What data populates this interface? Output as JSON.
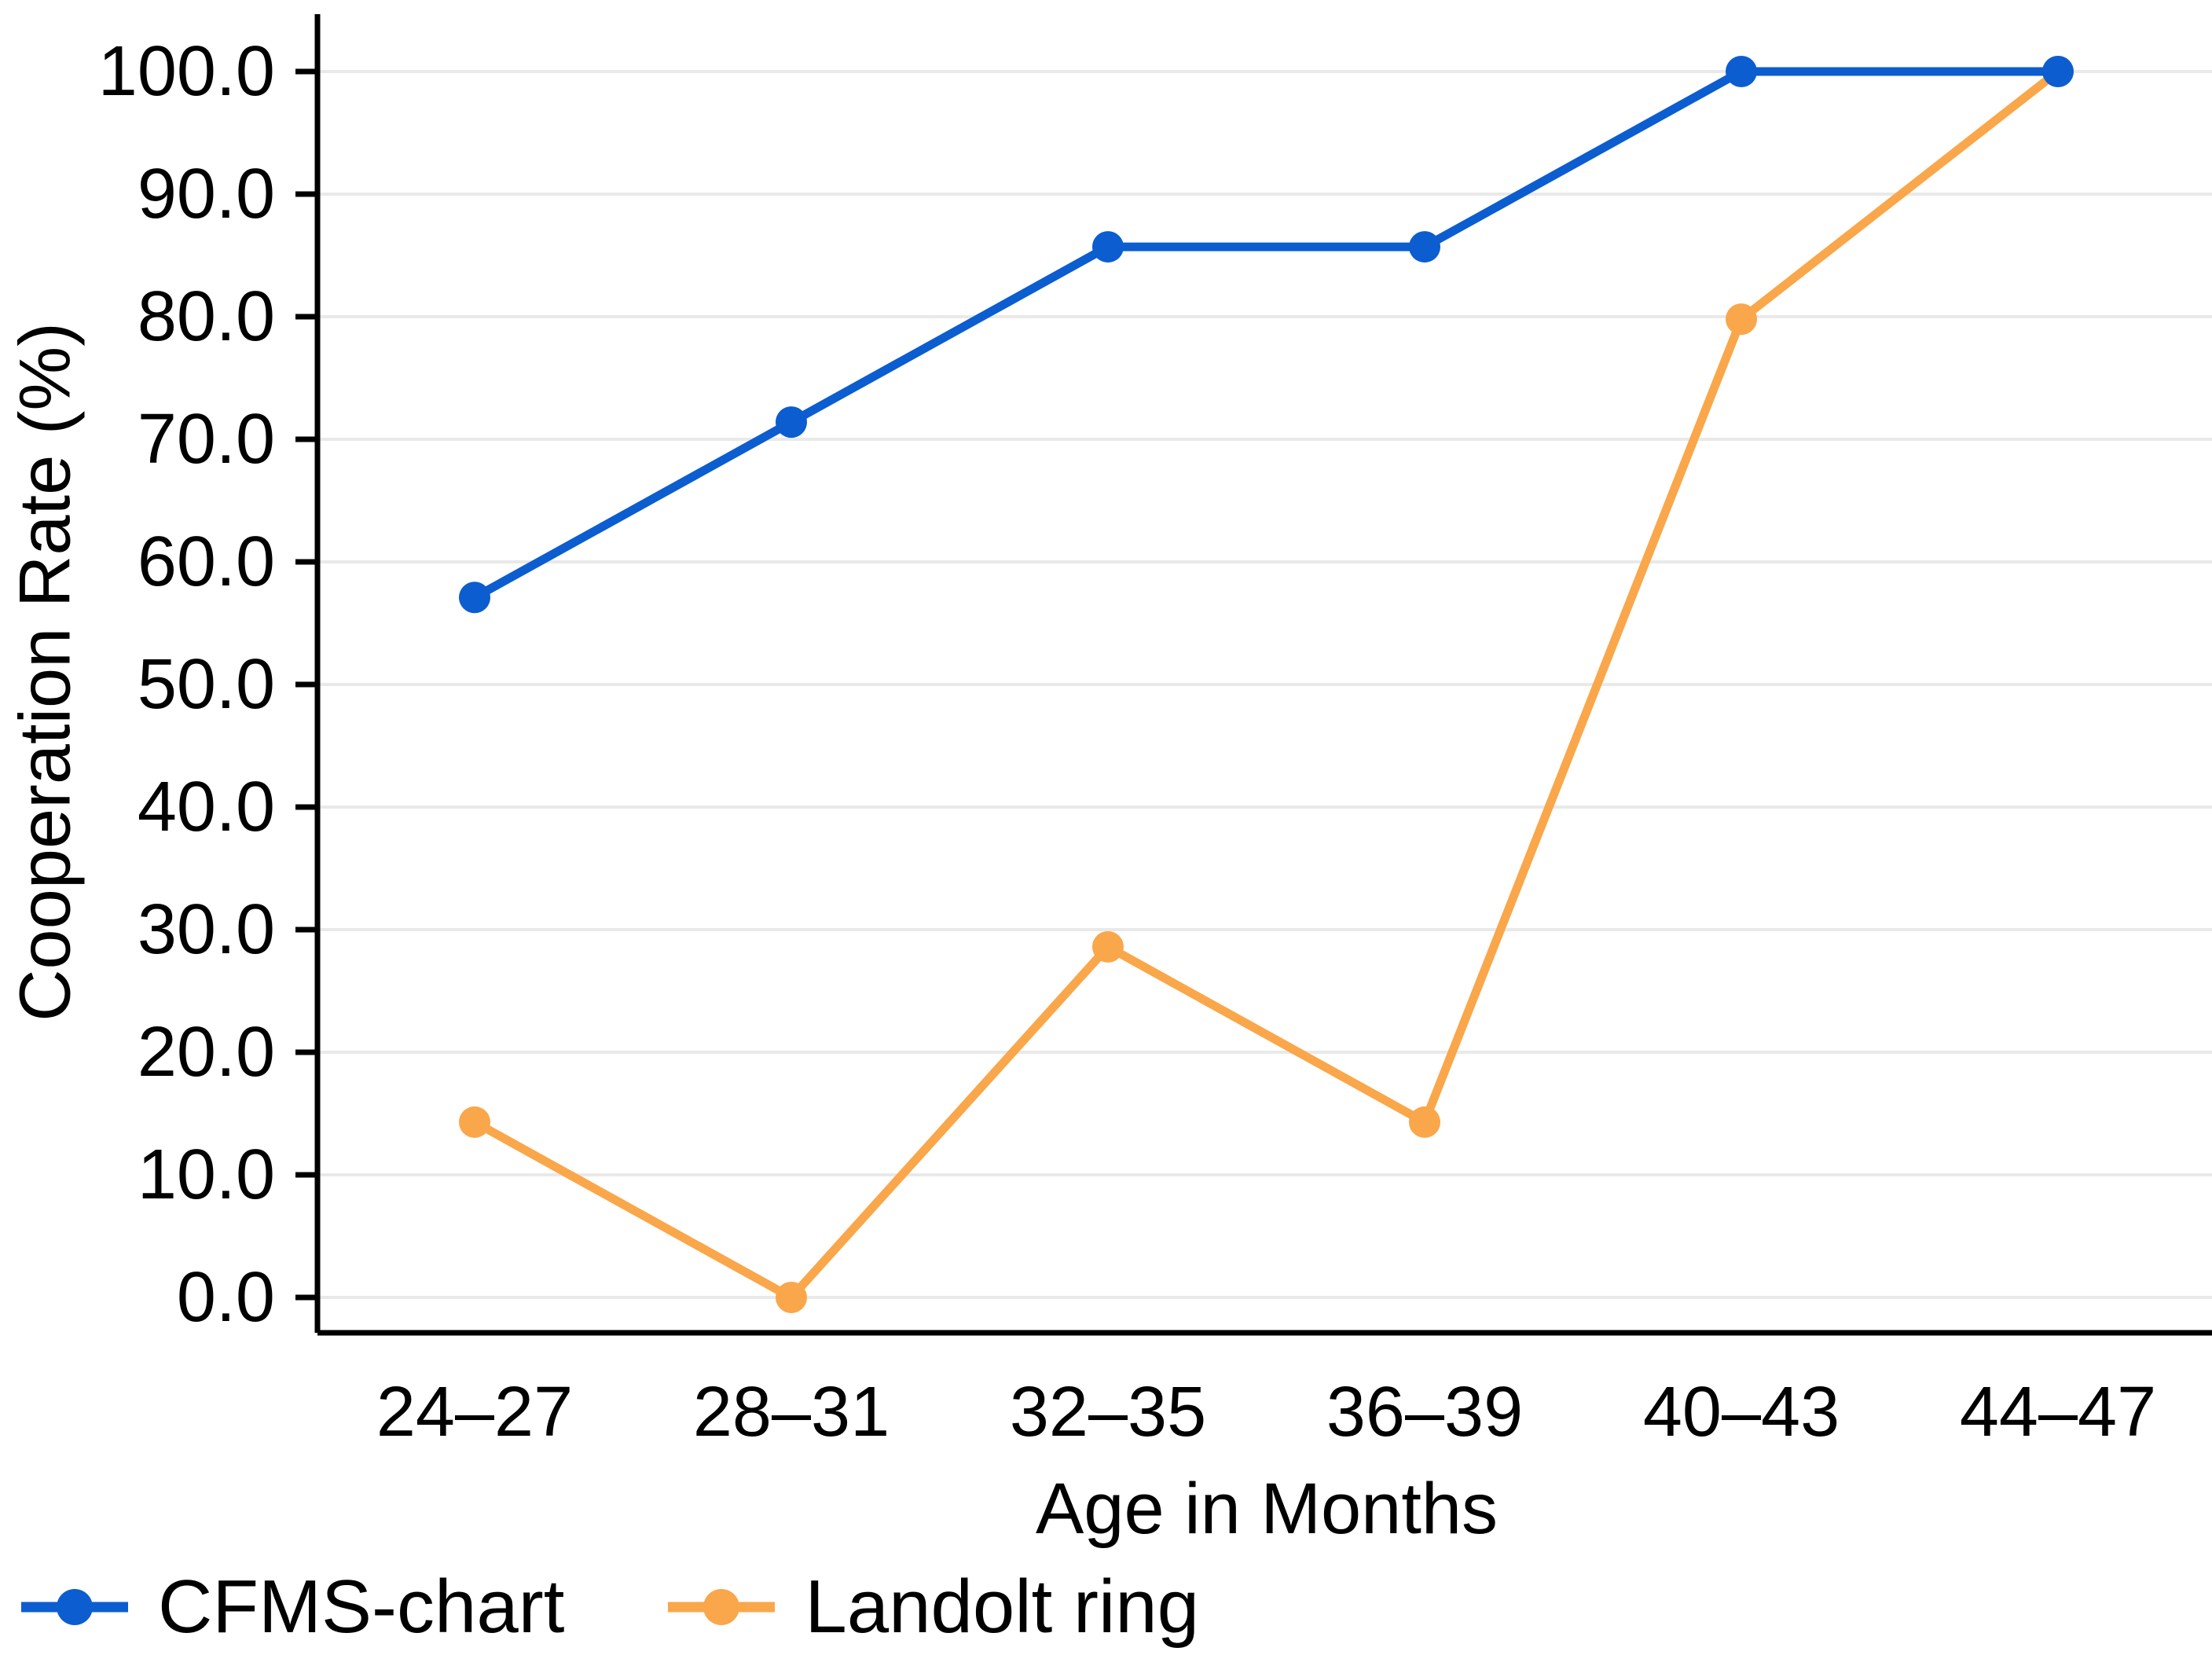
{
  "chart_data": {
    "type": "line",
    "title": "",
    "xlabel": "Age in Months",
    "ylabel": "Cooperation Rate (%)",
    "categories": [
      "24–27",
      "28–31",
      "32–35",
      "36–39",
      "40–43",
      "44–47"
    ],
    "series": [
      {
        "name": "CFMS-chart",
        "color": "#0B5DD0",
        "marker": "circle",
        "values": [
          57.1,
          71.4,
          85.7,
          85.7,
          100.0,
          100.0
        ]
      },
      {
        "name": "Landolt ring",
        "color": "#F9A74A",
        "marker": "circle",
        "values": [
          14.3,
          0.0,
          28.6,
          14.3,
          79.8,
          100.0
        ]
      }
    ],
    "ylim": [
      0,
      100
    ],
    "y_ticks": {
      "values": [
        0,
        10,
        20,
        30,
        40,
        50,
        60,
        70,
        80,
        90,
        100
      ],
      "labels": [
        "0.0",
        "10.0",
        "20.0",
        "30.0",
        "40.0",
        "50.0",
        "60.0",
        "70.0",
        "80.0",
        "90.0",
        "100.0"
      ]
    },
    "grid": "horizontal gridlines only",
    "gridline_color": "#E9E9E9",
    "axis_color": "#000000",
    "background_color": "#FFFFFF",
    "legend_position": "bottom-left"
  }
}
